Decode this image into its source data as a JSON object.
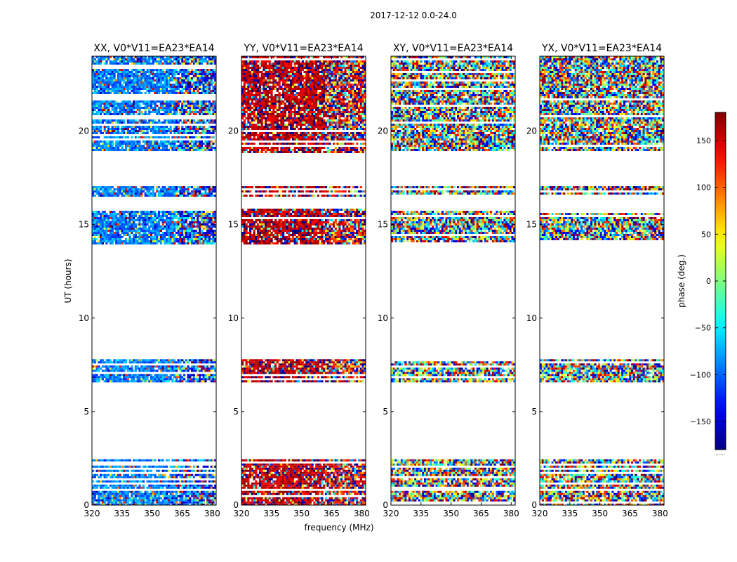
{
  "figure_title": "2017-12-12 0.0-24.0",
  "chart_data": {
    "type": "heatmap",
    "title": "2017-12-12 0.0-24.0",
    "xlabel": "frequency (MHz)",
    "ylabel": "UT (hours)",
    "xlim": [
      320,
      382
    ],
    "ylim": [
      0,
      24
    ],
    "x_ticks": [
      320,
      335,
      350,
      365,
      380
    ],
    "y_ticks": [
      0,
      5,
      10,
      15,
      20
    ],
    "panels": [
      {
        "title": "XX, V0*V11=EA23*EA14",
        "pol": "XX",
        "mean_phase_low_band": -90,
        "mean_phase_high_band": -110
      },
      {
        "title": "YY, V0*V11=EA23*EA14",
        "pol": "YY",
        "mean_phase_low_band": 160,
        "mean_phase_high_band": 150
      },
      {
        "title": "XY, V0*V11=EA23*EA14",
        "pol": "XY",
        "mean_phase_low_band": null,
        "mean_phase_high_band": null
      },
      {
        "title": "YX, V0*V11=EA23*EA14",
        "pol": "YX",
        "mean_phase_low_band": null,
        "mean_phase_high_band": null
      }
    ],
    "data_time_ranges_hours": [
      [
        0.0,
        2.45
      ],
      [
        6.6,
        7.8
      ],
      [
        14.0,
        15.85
      ],
      [
        16.5,
        17.05
      ],
      [
        18.9,
        24.0
      ]
    ],
    "colorbar": {
      "label": "phase (deg.)",
      "range": [
        -180,
        180
      ],
      "ticks": [
        -150,
        -100,
        -50,
        0,
        50,
        100,
        150
      ],
      "tick_labels": [
        "−150",
        "−100",
        "−50",
        "0",
        "50",
        "100",
        "150"
      ],
      "colormap": "jet",
      "below_label": "......"
    }
  }
}
